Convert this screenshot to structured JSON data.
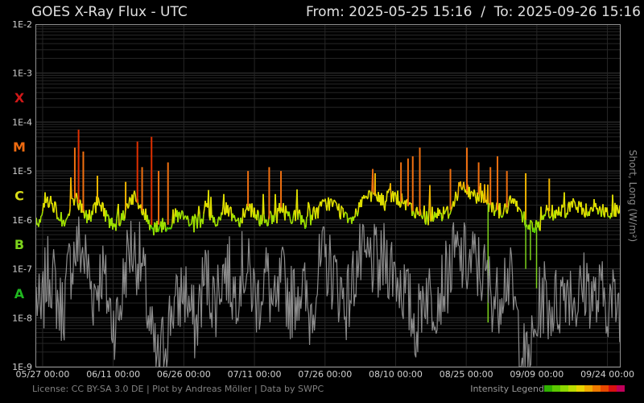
{
  "chart_data": {
    "type": "line",
    "title": "GOES X-Ray Flux - UTC",
    "range_label": "From: 2025-05-25 15:16  /  To: 2025-09-26 15:16",
    "ylabel": "Short, Long (W/m²)",
    "yscale": "log",
    "ylim": [
      1e-09,
      0.01
    ],
    "y_ticks": [
      {
        "value": 0.01,
        "label": "1E-2"
      },
      {
        "value": 0.001,
        "label": "1E-3"
      },
      {
        "value": 0.0001,
        "label": "1E-4"
      },
      {
        "value": 1e-05,
        "label": "1E-5"
      },
      {
        "value": 1e-06,
        "label": "1E-6"
      },
      {
        "value": 1e-07,
        "label": "1E-7"
      },
      {
        "value": 1e-08,
        "label": "1E-8"
      },
      {
        "value": 1e-09,
        "label": "1E-9"
      }
    ],
    "flare_classes": [
      {
        "label": "X",
        "low": 0.0001,
        "high": 0.001,
        "color": "#d01818"
      },
      {
        "label": "M",
        "low": 1e-05,
        "high": 0.0001,
        "color": "#ee6a10"
      },
      {
        "label": "C",
        "low": 1e-06,
        "high": 1e-05,
        "color": "#d8dc18"
      },
      {
        "label": "B",
        "low": 1e-07,
        "high": 1e-06,
        "color": "#7cd21c"
      },
      {
        "label": "A",
        "low": 1e-08,
        "high": 1e-07,
        "color": "#20b820"
      }
    ],
    "x_ticks": [
      "05/27 00:00",
      "06/11 00:00",
      "06/26 00:00",
      "07/11 00:00",
      "07/26 00:00",
      "08/10 00:00",
      "08/25 00:00",
      "09/09 00:00",
      "09/24 00:00"
    ],
    "x_tick_days": [
      1.36,
      16.36,
      31.36,
      46.36,
      61.36,
      76.36,
      91.36,
      106.36,
      121.36
    ],
    "x_span_days": 124,
    "grid": true,
    "series": [
      {
        "name": "Long",
        "color_scale": [
          "#52d000",
          "#9ee000",
          "#dede00",
          "#f0b400",
          "#f07010",
          "#e03000"
        ],
        "values": [
          9e-07,
          1.2e-06,
          2.8e-06,
          2.5e-06,
          1.9e-06,
          1.1e-06,
          8e-07,
          1.3e-06,
          3e-06,
          2.2e-06,
          1.5e-06,
          1.1e-06,
          1.4e-06,
          2.4e-06,
          1.8e-06,
          1.2e-06,
          8e-07,
          9e-07,
          1e-06,
          1.6e-06,
          3e-06,
          2.6e-06,
          1.9e-06,
          1.3e-06,
          9e-07,
          7e-07,
          8e-07,
          7.5e-07,
          8e-07,
          1.1e-06,
          1.2e-06,
          1.1e-06,
          1e-06,
          8e-07,
          8e-07,
          1e-06,
          1.3e-06,
          1.1e-06,
          9e-07,
          1.2e-06,
          1.5e-06,
          1.6e-06,
          1.2e-06,
          9e-07,
          1.4e-06,
          1.9e-06,
          1.6e-06,
          1.2e-06,
          1e-06,
          1.1e-06,
          1e-06,
          1.2e-06,
          1.8e-06,
          1.4e-06,
          1.2e-06,
          1.3e-06,
          1.1e-06,
          9e-07,
          1.1e-06,
          1.3e-06,
          1.6e-06,
          1.9e-06,
          2.3e-06,
          2.1e-06,
          1.7e-06,
          1.4e-06,
          1.3e-06,
          1.1e-06,
          1.4e-06,
          2.5e-06,
          3e-06,
          2.6e-06,
          3.1e-06,
          2.8e-06,
          2.1e-06,
          3.5e-06,
          3.2e-06,
          2.6e-06,
          2.2e-06,
          1.9e-06,
          1.5e-06,
          1.3e-06,
          1.2e-06,
          1.1e-06,
          1.3e-06,
          1.5e-06,
          1.4e-06,
          1.3e-06,
          1.6e-06,
          2.8e-06,
          5e-06,
          4.2e-06,
          3.6e-06,
          3.1e-06,
          3.3e-06,
          2.8e-06,
          2.2e-06,
          1.9e-06,
          1.6e-06,
          1.5e-06,
          1.8e-06,
          2.3e-06,
          2.1e-06,
          1.5e-06,
          1e-06,
          8e-07,
          7e-07,
          7.5e-07,
          1.1e-06,
          1.5e-06,
          1.4e-06,
          1.6e-06,
          1.5e-06,
          1.8e-06,
          2.1e-06,
          1.9e-06,
          1.5e-06,
          1.6e-06,
          1.9e-06,
          1.7e-06,
          1.5e-06,
          1.5e-06,
          1.4e-06,
          1.5e-06,
          1.4e-06
        ],
        "peaks": [
          {
            "day": 9,
            "value": 7e-05
          },
          {
            "day": 8.2,
            "value": 3e-05
          },
          {
            "day": 10,
            "value": 2.5e-05
          },
          {
            "day": 13,
            "value": 8e-06
          },
          {
            "day": 19,
            "value": 6e-06
          },
          {
            "day": 21.5,
            "value": 4e-05
          },
          {
            "day": 24.5,
            "value": 5e-05
          },
          {
            "day": 22.5,
            "value": 1.2e-05
          },
          {
            "day": 26,
            "value": 1e-05
          },
          {
            "day": 28,
            "value": 1.5e-05
          },
          {
            "day": 45,
            "value": 1e-05
          },
          {
            "day": 49.5,
            "value": 1.2e-05
          },
          {
            "day": 52,
            "value": 1e-05
          },
          {
            "day": 72,
            "value": 9e-06
          },
          {
            "day": 77.5,
            "value": 1.5e-05
          },
          {
            "day": 79,
            "value": 1.8e-05
          },
          {
            "day": 80,
            "value": 2e-05
          },
          {
            "day": 81.5,
            "value": 3e-05
          },
          {
            "day": 88,
            "value": 1.1e-05
          },
          {
            "day": 91.5,
            "value": 3e-05
          },
          {
            "day": 94,
            "value": 1.5e-05
          },
          {
            "day": 96.5,
            "value": 1.2e-05
          },
          {
            "day": 98,
            "value": 2e-05
          },
          {
            "day": 100,
            "value": 1e-05
          },
          {
            "day": 104,
            "value": 9e-06
          },
          {
            "day": 109,
            "value": 7e-06
          }
        ],
        "dips": [
          {
            "day": 96,
            "value": 8e-09
          },
          {
            "day": 104,
            "value": 1e-07
          },
          {
            "day": 105,
            "value": 1.5e-07
          },
          {
            "day": 106.3,
            "value": 4e-08
          }
        ]
      },
      {
        "name": "Short",
        "color": "#8c8c8c",
        "values": [
          3e-08,
          8e-09,
          6e-08,
          1e-07,
          4e-08,
          1.5e-08,
          2e-08,
          1e-07,
          2e-07,
          3e-07,
          2e-07,
          1e-07,
          3e-08,
          5e-08,
          1e-07,
          3e-08,
          1e-08,
          8e-09,
          2e-08,
          1.2e-07,
          3e-07,
          2e-07,
          1.5e-07,
          5e-08,
          8e-09,
          2e-09,
          1e-09,
          3e-09,
          6e-09,
          2e-08,
          1.5e-08,
          4e-08,
          3e-08,
          1e-08,
          6e-09,
          3e-08,
          8e-08,
          4e-08,
          2e-08,
          6e-08,
          1e-07,
          8e-08,
          3e-08,
          6e-08,
          1.2e-07,
          8e-08,
          4e-08,
          2e-08,
          5e-08,
          8e-08,
          2e-08,
          1e-08,
          6e-08,
          4e-08,
          2e-08,
          3e-08,
          5e-08,
          3e-08,
          1e-08,
          3e-08,
          8e-08,
          1.5e-07,
          1.2e-07,
          8e-08,
          5e-08,
          3e-08,
          2e-08,
          4e-08,
          1.2e-07,
          1.5e-07,
          1.2e-07,
          1.5e-07,
          1.3e-07,
          8e-08,
          1.8e-07,
          1.3e-07,
          1e-07,
          6e-08,
          4e-08,
          2e-08,
          1e-08,
          6e-09,
          3e-08,
          4e-08,
          2e-08,
          3e-08,
          4e-08,
          6e-08,
          1e-07,
          2e-07,
          1.5e-07,
          1.5e-07,
          1.2e-07,
          1.4e-07,
          1e-07,
          8e-08,
          5e-08,
          3e-08,
          2e-08,
          6e-08,
          8e-08,
          4e-08,
          1e-08,
          3e-09,
          1e-09,
          2e-09,
          4e-09,
          2e-08,
          3e-08,
          1.5e-08,
          2e-08,
          2e-08,
          4e-08,
          5e-08,
          3e-08,
          2e-08,
          4e-08,
          5e-08,
          3e-08,
          2e-08,
          3e-08,
          2.5e-08,
          2e-08,
          2e-08
        ]
      }
    ]
  },
  "footer": {
    "license": "License: CC BY-SA 3.0 DE | Plot by Andreas Möller | Data by SWPC",
    "legend_label": "Intensity Legend",
    "legend_colors": [
      "#30b000",
      "#5cc800",
      "#8cd800",
      "#bcdc00",
      "#e8d400",
      "#f0aa00",
      "#ee7a00",
      "#e84800",
      "#d81010",
      "#c0005a"
    ]
  }
}
